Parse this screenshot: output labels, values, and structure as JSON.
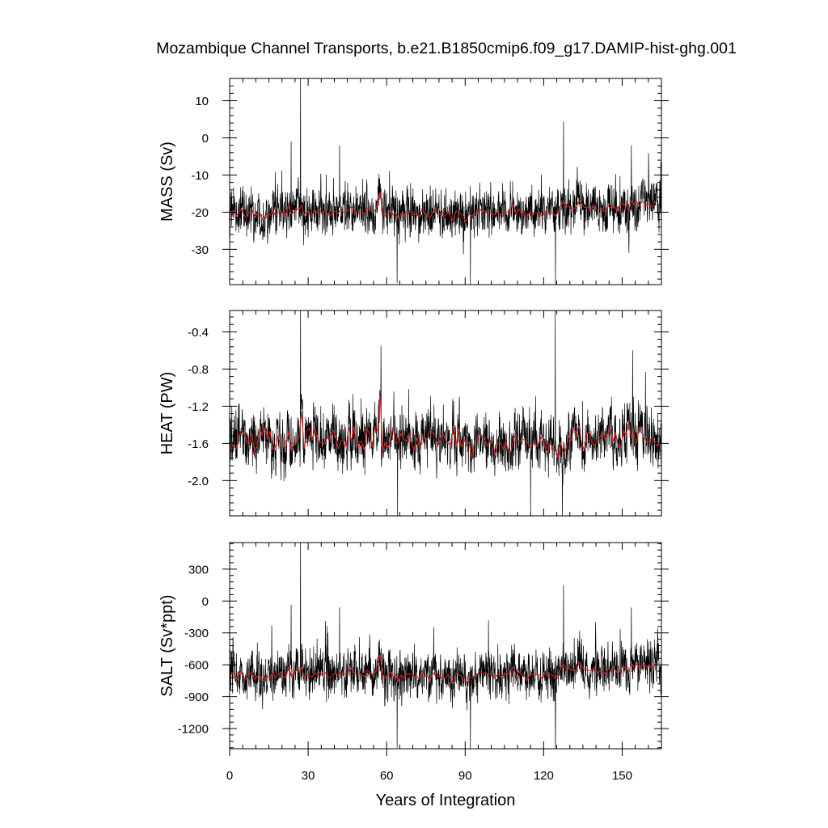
{
  "title": "Mozambique Channel Transports, b.e21.B1850cmip6.f09_g17.DAMIP-hist-ghg.001",
  "colors": {
    "monthly": "#000000",
    "annual": "#d62020",
    "frame": "#000000",
    "background": "#ffffff"
  },
  "chart_data": [
    {
      "type": "line",
      "ylabel": "MASS (Sv)",
      "xlabel": "",
      "xlim": [
        0,
        165
      ],
      "ylim": [
        -39.5,
        16
      ],
      "yticks": [
        10,
        0,
        -10,
        -20,
        -30
      ],
      "yticklabels": [
        "10",
        "0",
        "-10",
        "-20",
        "-30"
      ],
      "xticks": [
        0,
        30,
        60,
        90,
        120,
        150
      ],
      "series": [
        {
          "style": "monthly",
          "mean": -20,
          "amplitude": 5.5,
          "peaks": [
            [
              27.1,
              16
            ],
            [
              23.5,
              -1
            ],
            [
              42,
              -2
            ],
            [
              56.9,
              -11
            ],
            [
              127.6,
              4.4
            ],
            [
              153.5,
              -2
            ]
          ],
          "troughs": [
            [
              64,
              -39
            ],
            [
              92,
              -39.5
            ],
            [
              124.5,
              -39.5
            ]
          ]
        },
        {
          "style": "annual",
          "y": [
            -20.2,
            -19.5,
            -21.0,
            -20.3,
            -19.0,
            -20.8,
            -21.5,
            -20.0,
            -19.2,
            -21.3,
            -20.6,
            -20.0,
            -22.0,
            -21.2,
            -20.5,
            -20.8,
            -19.3,
            -21.0,
            -20.1,
            -19.5,
            -20.6,
            -21.0,
            -17.8,
            -20.4,
            -20.0,
            -18.9,
            -19.4,
            -18.1,
            -20.9,
            -19.8,
            -20.4,
            -20.7,
            -19.6,
            -20.1,
            -19.4,
            -20.3,
            -19.5,
            -20.6,
            -21.0,
            -20.0,
            -19.7,
            -20.3,
            -19.2,
            -20.0,
            -19.8,
            -19.6,
            -18.4,
            -19.4,
            -20.1,
            -19.8,
            -20.0,
            -20.6,
            -18.9,
            -19.5,
            -19.8,
            -19.7,
            -17.8,
            -14.6,
            -20.5,
            -20.8,
            -20.2,
            -19.3,
            -20.7,
            -20.1,
            -21.9,
            -20.3,
            -20.9,
            -20.0,
            -19.9,
            -20.0,
            -20.7,
            -20.5,
            -21.2,
            -19.1,
            -20.4,
            -20.3,
            -21.6,
            -20.1,
            -19.1,
            -20.6,
            -20.5,
            -21.2,
            -21.0,
            -20.0,
            -21.4,
            -22.4,
            -19.6,
            -20.2,
            -20.4,
            -21.7,
            -22.4,
            -20.3,
            -21.0,
            -20.6,
            -20.3,
            -19.1,
            -19.9,
            -19.6,
            -19.8,
            -20.0,
            -20.6,
            -20.7,
            -19.9,
            -20.7,
            -20.1,
            -19.9,
            -20.1,
            -18.7,
            -17.9,
            -20.8,
            -19.1,
            -20.2,
            -20.0,
            -21.7,
            -20.2,
            -20.0,
            -20.1,
            -20.2,
            -20.1,
            -21.4,
            -19.7,
            -20.2,
            -20.1,
            -20.3,
            -21.1,
            -19.9,
            -18.5,
            -17.0,
            -18.6,
            -18.4,
            -18.8,
            -19.0,
            -18.7,
            -16.9,
            -17.7,
            -18.7,
            -18.6,
            -19.1,
            -18.8,
            -18.0,
            -19.6,
            -19.2,
            -19.3,
            -19.9,
            -18.4,
            -18.8,
            -18.3,
            -18.9,
            -19.9,
            -17.6,
            -17.9,
            -18.4,
            -19.6,
            -16.9,
            -18.0,
            -17.1,
            -18.3,
            -17.3,
            -17.3,
            -18.0,
            -17.6,
            -18.7,
            -17.0
          ]
        }
      ]
    },
    {
      "type": "line",
      "ylabel": "HEAT (PW)",
      "xlabel": "",
      "xlim": [
        0,
        165
      ],
      "ylim": [
        -2.38,
        -0.17
      ],
      "yticks": [
        -0.4,
        -0.8,
        -1.2,
        -1.6,
        -2.0
      ],
      "yticklabels": [
        "-0.4",
        "-0.8",
        "-1.2",
        "-1.6",
        "-2.0"
      ],
      "xticks": [
        0,
        30,
        60,
        90,
        120,
        150
      ],
      "series": [
        {
          "style": "monthly",
          "mean": -1.58,
          "amplitude": 0.24,
          "peaks": [
            [
              27.1,
              -0.17
            ],
            [
              57.8,
              -0.55
            ],
            [
              124.4,
              -0.17
            ],
            [
              154,
              -0.6
            ]
          ],
          "troughs": [
            [
              64.2,
              -2.38
            ],
            [
              115,
              -2.35
            ],
            [
              127.2,
              -2.38
            ]
          ]
        },
        {
          "style": "annual",
          "y": [
            -1.6,
            -1.63,
            -1.66,
            -1.5,
            -1.46,
            -1.49,
            -1.59,
            -1.61,
            -1.49,
            -1.69,
            -1.62,
            -1.44,
            -1.51,
            -1.42,
            -1.56,
            -1.47,
            -1.66,
            -1.64,
            -1.51,
            -1.62,
            -1.65,
            -1.64,
            -1.47,
            -1.67,
            -1.6,
            -1.6,
            -1.53,
            -1.26,
            -1.66,
            -1.46,
            -1.44,
            -1.57,
            -1.43,
            -1.54,
            -1.59,
            -1.59,
            -1.61,
            -1.5,
            -1.57,
            -1.46,
            -1.52,
            -1.66,
            -1.57,
            -1.58,
            -1.64,
            -1.42,
            -1.58,
            -1.41,
            -1.66,
            -1.58,
            -1.58,
            -1.68,
            -1.44,
            -1.51,
            -1.63,
            -1.42,
            -1.46,
            -1.08,
            -1.7,
            -1.59,
            -1.64,
            -1.56,
            -1.42,
            -1.6,
            -1.58,
            -1.49,
            -1.56,
            -1.57,
            -1.5,
            -1.61,
            -1.67,
            -1.54,
            -1.64,
            -1.52,
            -1.55,
            -1.56,
            -1.46,
            -1.49,
            -1.5,
            -1.62,
            -1.54,
            -1.5,
            -1.56,
            -1.6,
            -1.61,
            -1.41,
            -1.63,
            -1.43,
            -1.64,
            -1.56,
            -1.61,
            -1.59,
            -1.75,
            -1.59,
            -1.55,
            -1.49,
            -1.53,
            -1.56,
            -1.63,
            -1.58,
            -1.57,
            -1.73,
            -1.6,
            -1.59,
            -1.66,
            -1.57,
            -1.69,
            -1.69,
            -1.55,
            -1.51,
            -1.59,
            -1.56,
            -1.56,
            -1.58,
            -1.63,
            -1.62,
            -1.59,
            -1.63,
            -1.57,
            -1.51,
            -1.64,
            -1.71,
            -1.59,
            -1.66,
            -1.67,
            -1.75,
            -1.58,
            -1.72,
            -1.66,
            -1.52,
            -1.57,
            -1.44,
            -1.5,
            -1.41,
            -1.6,
            -1.67,
            -1.49,
            -1.48,
            -1.6,
            -1.62,
            -1.57,
            -1.53,
            -1.47,
            -1.56,
            -1.49,
            -1.44,
            -1.58,
            -1.48,
            -1.64,
            -1.65,
            -1.46,
            -1.51,
            -1.38,
            -1.54,
            -1.51,
            -1.6,
            -1.43,
            -1.49,
            -1.53,
            -1.6,
            -1.57,
            -1.54,
            -1.58,
            -1.63,
            -1.6
          ]
        }
      ]
    },
    {
      "type": "line",
      "ylabel": "SALT (Sv*ppt)",
      "xlabel": "Years of Integration",
      "xlim": [
        0,
        165
      ],
      "ylim": [
        -1390,
        550
      ],
      "yticks": [
        300,
        0,
        -300,
        -600,
        -900,
        -1200
      ],
      "yticklabels": [
        "300",
        "0",
        "-300",
        "-600",
        "-900",
        "-1200"
      ],
      "xticks": [
        0,
        30,
        60,
        90,
        120,
        150
      ],
      "xticklabels": [
        "0",
        "30",
        "60",
        "90",
        "120",
        "150"
      ],
      "series": [
        {
          "style": "monthly",
          "mean": -690,
          "amplitude": 190,
          "peaks": [
            [
              27.1,
              550
            ],
            [
              23.5,
              -35
            ],
            [
              42,
              -60
            ],
            [
              56.9,
              -385
            ],
            [
              127.6,
              150
            ],
            [
              153.5,
              -60
            ]
          ],
          "troughs": [
            [
              64,
              -1380
            ],
            [
              92,
              -1390
            ],
            [
              124.5,
              -1390
            ]
          ]
        },
        {
          "style": "annual",
          "y": [
            -695,
            -668,
            -728,
            -703,
            -655,
            -718,
            -741,
            -690,
            -662,
            -736,
            -711,
            -690,
            -760,
            -732,
            -707,
            -718,
            -666,
            -725,
            -693,
            -673,
            -711,
            -725,
            -614,
            -704,
            -690,
            -652,
            -669,
            -624,
            -722,
            -683,
            -704,
            -714,
            -676,
            -693,
            -669,
            -700,
            -673,
            -711,
            -725,
            -690,
            -680,
            -700,
            -662,
            -690,
            -683,
            -676,
            -634,
            -669,
            -693,
            -683,
            -690,
            -711,
            -652,
            -673,
            -683,
            -680,
            -614,
            -504,
            -707,
            -718,
            -697,
            -666,
            -714,
            -693,
            -755,
            -700,
            -721,
            -690,
            -686,
            -690,
            -714,
            -707,
            -732,
            -659,
            -704,
            -700,
            -745,
            -693,
            -659,
            -711,
            -707,
            -732,
            -725,
            -690,
            -738,
            -773,
            -676,
            -697,
            -704,
            -749,
            -773,
            -700,
            -725,
            -711,
            -700,
            -659,
            -686,
            -676,
            -683,
            -690,
            -711,
            -714,
            -686,
            -714,
            -693,
            -686,
            -693,
            -645,
            -617,
            -718,
            -659,
            -697,
            -690,
            -749,
            -697,
            -690,
            -693,
            -697,
            -693,
            -738,
            -680,
            -697,
            -693,
            -700,
            -728,
            -686,
            -638,
            -586,
            -642,
            -634,
            -648,
            -655,
            -645,
            -583,
            -610,
            -645,
            -642,
            -659,
            -648,
            -621,
            -676,
            -662,
            -666,
            -686,
            -634,
            -648,
            -631,
            -652,
            -686,
            -607,
            -617,
            -634,
            -676,
            -583,
            -621,
            -590,
            -631,
            -597,
            -597,
            -621,
            -607,
            -645,
            -586
          ]
        }
      ]
    }
  ]
}
